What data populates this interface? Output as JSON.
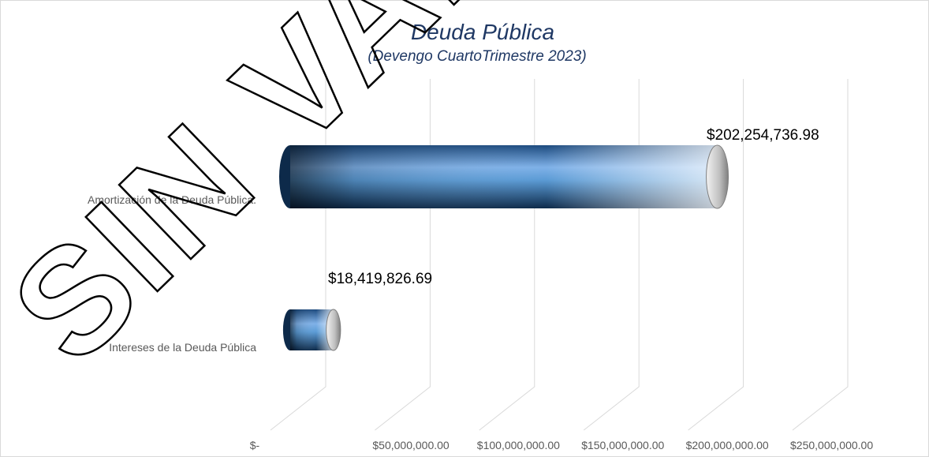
{
  "chart_data": {
    "type": "bar",
    "orientation": "horizontal",
    "style": "3d-cylinder",
    "title": "Deuda Pública",
    "subtitle": "(Devengo CuartoTrimestre  2023)",
    "categories": [
      "Amortización de la Deuda Pública.",
      "Intereses de la Deuda Pública"
    ],
    "values": [
      202254736.98,
      18419826.69
    ],
    "data_labels": [
      "$202,254,736.98",
      "$18,419,826.69"
    ],
    "xlim": [
      0,
      250000000
    ],
    "x_ticks": [
      0,
      50000000,
      100000000,
      150000000,
      200000000,
      250000000
    ],
    "x_tick_labels": [
      "$-",
      "$50,000,000.00",
      "$100,000,000.00",
      "$150,000,000.00",
      "$200,000,000.00",
      "$250,000,000.00"
    ],
    "grid": true,
    "legend": "none",
    "colors": {
      "bar_light": "#5b9bd5",
      "bar_dark": "#0d1f33",
      "bar_highlight": "#ffffff",
      "grid": "#d9d9d9",
      "title": "#1f3864"
    }
  },
  "watermark": "SIN VALOR"
}
